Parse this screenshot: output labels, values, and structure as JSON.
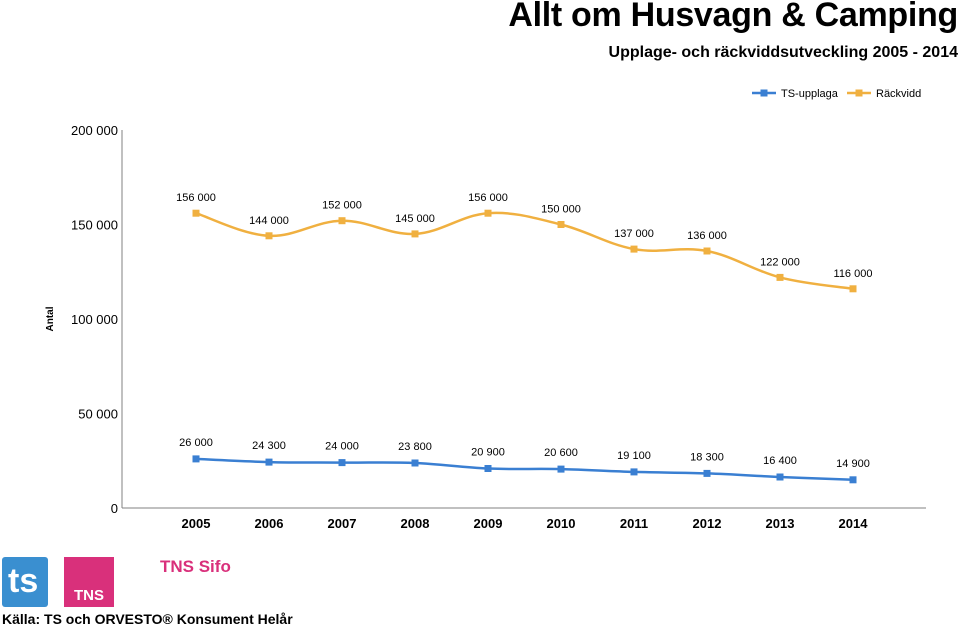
{
  "header": {
    "title": "Allt om Husvagn & Camping",
    "subtitle": "Upplage- och räckviddsutveckling 2005 - 2014"
  },
  "footer": {
    "source": "Källa: TS och ORVESTO® Konsument Helår",
    "sifo_label": "TNS Sifo",
    "tns_label": "TNS",
    "ts_label": "ts"
  },
  "colors": {
    "ts_upplaga": "#3a7fd2",
    "rackvidd": "#f0b040",
    "axis": "#808080"
  },
  "chart_data": {
    "type": "line",
    "categories": [
      "2005",
      "2006",
      "2007",
      "2008",
      "2009",
      "2010",
      "2011",
      "2012",
      "2013",
      "2014"
    ],
    "ylabel": "Antal",
    "ylim": [
      0,
      200000
    ],
    "yticks": [
      0,
      50000,
      100000,
      150000,
      200000
    ],
    "ytick_labels": [
      "0",
      "50 000",
      "100 000",
      "150 000",
      "200 000"
    ],
    "legend_position": "top-right",
    "grid": false,
    "series": [
      {
        "name": "TS-upplaga",
        "values": [
          26000,
          24300,
          24000,
          23800,
          20900,
          20600,
          19100,
          18300,
          16400,
          14900
        ],
        "labels": [
          "26 000",
          "24 300",
          "24 000",
          "23 800",
          "20 900",
          "20 600",
          "19 100",
          "18 300",
          "16 400",
          "14 900"
        ]
      },
      {
        "name": "Räckvidd",
        "values": [
          156000,
          144000,
          152000,
          145000,
          156000,
          150000,
          137000,
          136000,
          122000,
          116000
        ],
        "labels": [
          "156 000",
          "144 000",
          "152 000",
          "145 000",
          "156 000",
          "150 000",
          "137 000",
          "136 000",
          "122 000",
          "116 000"
        ]
      }
    ]
  }
}
